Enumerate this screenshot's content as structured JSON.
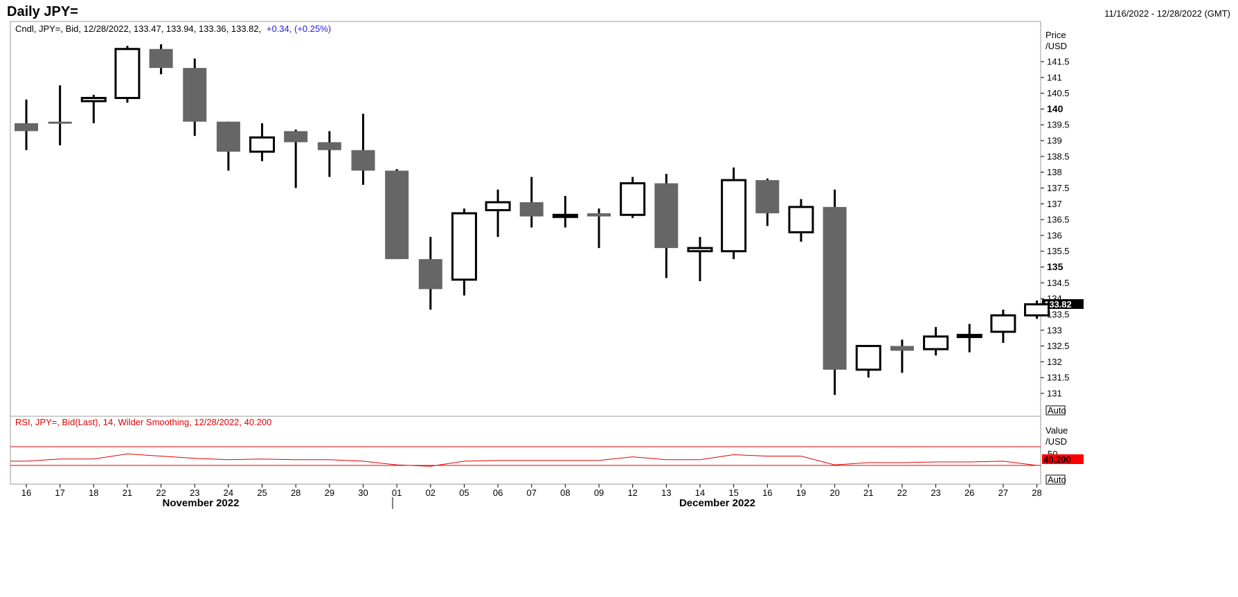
{
  "header": {
    "title": "Daily JPY=",
    "date_range": "11/16/2022 - 12/28/2022 (GMT)"
  },
  "price_panel": {
    "info_prefix": "Cndl, JPY=, Bid, 12/28/2022, 133.47, 133.94, 133.36, 133.82,",
    "info_change": "+0.34, (+0.25%)",
    "axis_title_1": "Price",
    "axis_title_2": "/USD",
    "last_label": "133.82",
    "auto_label": "Auto"
  },
  "rsi_panel": {
    "info": "RSI, JPY=, Bid(Last),  14, Wilder Smoothing, 12/28/2022, 40.200",
    "axis_title_1": "Value",
    "axis_title_2": "/USD",
    "tick_50": "50",
    "last_label": "40.200",
    "auto_label": "Auto"
  },
  "months": [
    "November 2022",
    "December 2022"
  ],
  "colors": {
    "down_candle": "#666666",
    "up_candle": "#ffffff",
    "rsi_line": "#e00000",
    "change_text": "#2020e0"
  },
  "chart_data": {
    "type": "candlestick",
    "instrument": "JPY=",
    "dates": [
      "16",
      "17",
      "18",
      "21",
      "22",
      "23",
      "24",
      "25",
      "28",
      "29",
      "30",
      "01",
      "02",
      "05",
      "06",
      "07",
      "08",
      "09",
      "12",
      "13",
      "14",
      "15",
      "16",
      "19",
      "20",
      "21",
      "22",
      "23",
      "26",
      "27",
      "28"
    ],
    "open": [
      139.55,
      139.6,
      140.25,
      140.35,
      141.9,
      141.3,
      139.6,
      138.65,
      139.3,
      138.95,
      138.7,
      138.05,
      135.25,
      134.6,
      136.8,
      137.05,
      136.65,
      136.7,
      136.65,
      137.65,
      135.5,
      135.5,
      137.75,
      136.1,
      136.9,
      131.75,
      132.5,
      132.4,
      132.8,
      132.95,
      133.47
    ],
    "high": [
      140.3,
      140.75,
      140.45,
      142.0,
      142.05,
      141.6,
      139.6,
      139.55,
      139.35,
      139.3,
      139.85,
      138.1,
      135.95,
      136.85,
      137.45,
      137.85,
      137.25,
      136.85,
      137.85,
      137.95,
      135.95,
      138.15,
      137.8,
      137.15,
      137.45,
      132.5,
      132.7,
      133.1,
      133.2,
      133.65,
      133.94
    ],
    "low": [
      138.7,
      138.85,
      139.55,
      140.2,
      141.1,
      139.15,
      138.05,
      138.35,
      137.5,
      137.85,
      137.6,
      135.25,
      133.65,
      134.1,
      135.95,
      136.25,
      136.25,
      135.6,
      136.55,
      134.65,
      134.55,
      135.25,
      136.3,
      135.8,
      130.95,
      131.5,
      131.65,
      132.2,
      132.3,
      132.6,
      133.36
    ],
    "close": [
      139.3,
      139.55,
      140.35,
      141.9,
      141.3,
      139.6,
      138.65,
      139.1,
      138.95,
      138.7,
      138.05,
      135.25,
      134.3,
      136.7,
      137.05,
      136.6,
      136.65,
      136.6,
      137.65,
      135.6,
      135.6,
      137.75,
      136.7,
      136.9,
      131.75,
      132.5,
      132.35,
      132.8,
      132.85,
      133.47,
      133.82
    ],
    "rsi": [
      46,
      49,
      49,
      56,
      53,
      50,
      48,
      49,
      48,
      48,
      46,
      41,
      39,
      46,
      47,
      47,
      47,
      47,
      52,
      48,
      48,
      55,
      53,
      53,
      41,
      44,
      44,
      45,
      45,
      46,
      40.2
    ],
    "y_ticks": [
      "131",
      "131.5",
      "132",
      "132.5",
      "133",
      "133.5",
      "134",
      "134.5",
      "135",
      "135.5",
      "136",
      "136.5",
      "137",
      "137.5",
      "138",
      "138.5",
      "139",
      "139.5",
      "140",
      "140.5",
      "141",
      "141.5"
    ],
    "ylim": [
      130.6,
      142.4
    ],
    "rsi_ylim": [
      0,
      100
    ],
    "rsi_levels": [
      30,
      70
    ]
  }
}
